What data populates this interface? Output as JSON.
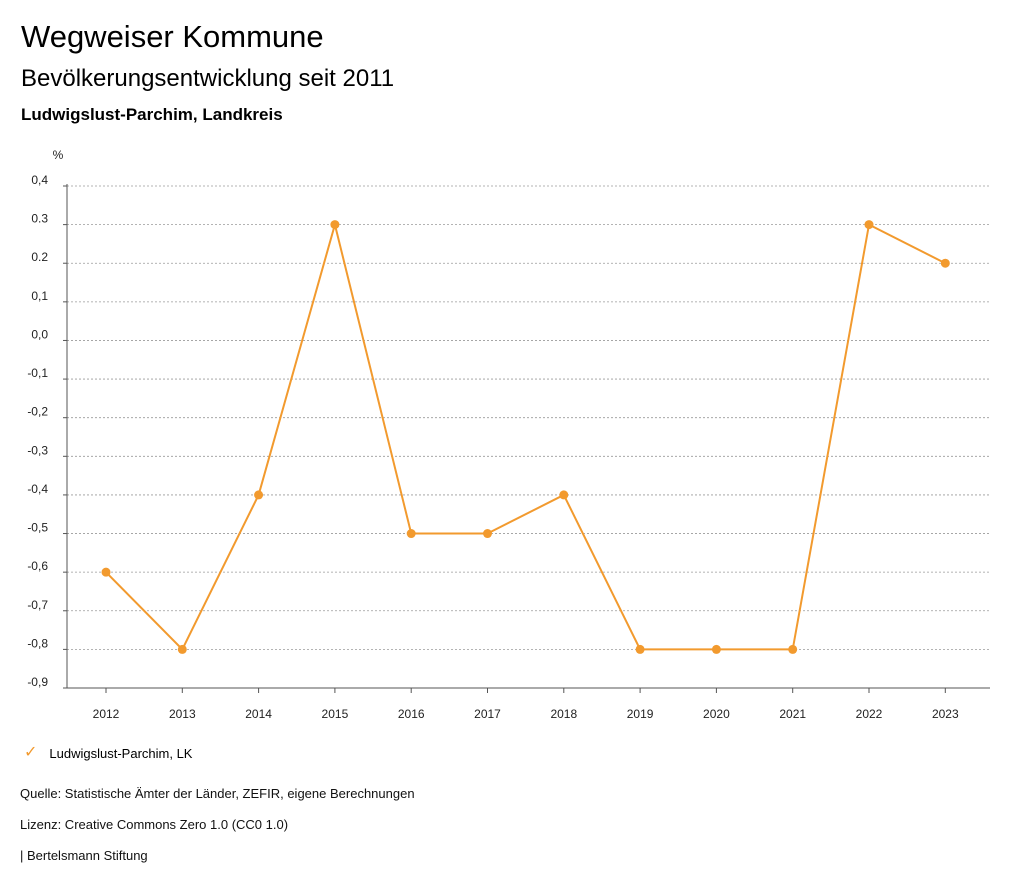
{
  "header": {
    "title": "Wegweiser Kommune",
    "subtitle": "Bevölkerungsentwicklung seit 2011",
    "region": "Ludwigslust-Parchim, Landkreis"
  },
  "colors": {
    "series": "#F29A2E",
    "grid": "#9a9a9a",
    "axis": "#555555"
  },
  "chart_data": {
    "type": "line",
    "unit": "%",
    "x": [
      "2012",
      "2013",
      "2014",
      "2015",
      "2016",
      "2017",
      "2018",
      "2019",
      "2020",
      "2021",
      "2022",
      "2023"
    ],
    "yticks": [
      0.4,
      0.3,
      0.2,
      0.1,
      0.0,
      -0.1,
      -0.2,
      -0.3,
      -0.4,
      -0.5,
      -0.6,
      -0.7,
      -0.8,
      -0.9
    ],
    "ytick_labels": [
      "0,4",
      "0.3",
      "0.2",
      "0,1",
      "0,0",
      "-0,1",
      "-0,2",
      "-0,3",
      "-0,4",
      "-0,5",
      "-0,6",
      "-0,7",
      "-0,8",
      "-0,9"
    ],
    "ylim": [
      -0.9,
      0.4
    ],
    "grid": true,
    "series": [
      {
        "name": "Ludwigslust-Parchim, LK",
        "values": [
          -0.6,
          -0.8,
          -0.4,
          0.3,
          -0.5,
          -0.5,
          -0.4,
          -0.8,
          -0.8,
          -0.8,
          0.3,
          0.2
        ]
      }
    ],
    "legend_position": "bottom-left"
  },
  "legend": {
    "icon": "check-icon",
    "label": "Ludwigslust-Parchim, LK"
  },
  "footer": {
    "source": "Quelle: Statistische Ämter der Länder, ZEFIR, eigene Berechnungen",
    "license": "Lizenz: Creative Commons Zero 1.0 (CC0 1.0)",
    "publisher": "| Bertelsmann Stiftung"
  }
}
